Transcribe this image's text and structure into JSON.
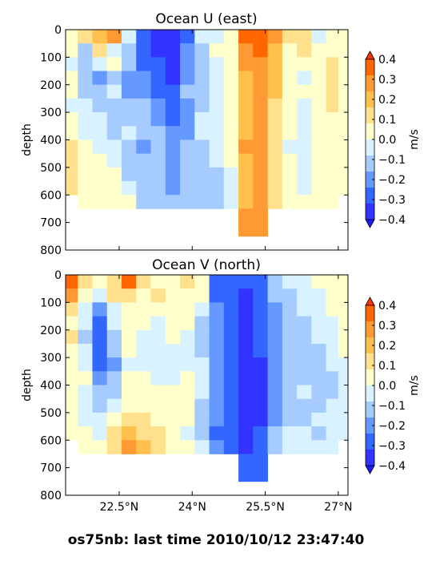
{
  "figure": {
    "caption": "os75nb: last time 2010/10/12 23:47:40"
  },
  "colors": {
    "levels": [
      "#3333ff",
      "#3366ff",
      "#6699ff",
      "#a6ccff",
      "#d9f2ff",
      "#ffffcc",
      "#ffe08c",
      "#ffc04d",
      "#ff9933",
      "#ff6600"
    ],
    "nodata": "#ffffff"
  },
  "chart_data": [
    {
      "type": "heatmap",
      "title": "Ocean U (east)",
      "ylabel": "depth",
      "ylim": [
        800,
        0
      ],
      "yticks": [
        "0",
        "100",
        "200",
        "300",
        "400",
        "500",
        "600",
        "700",
        "800"
      ],
      "xlim": [
        21.4,
        27.2
      ],
      "xticks": [],
      "colorbar": {
        "label": "m/s",
        "ticks": [
          "0.4",
          "0.3",
          "0.2",
          "0.1",
          "0.0",
          "−0.1",
          "−0.2",
          "−0.3",
          "−0.4"
        ],
        "range": [
          -0.4,
          0.4
        ]
      },
      "depth_bins": [
        25,
        75,
        125,
        175,
        225,
        275,
        325,
        375,
        425,
        475,
        525,
        575,
        625,
        675,
        725
      ],
      "latitude_bins": [
        21.5,
        21.8,
        22.1,
        22.4,
        22.7,
        23.0,
        23.3,
        23.6,
        23.9,
        24.2,
        24.5,
        24.8,
        25.1,
        25.4,
        25.7,
        26.0,
        26.3,
        26.6,
        26.9,
        27.1
      ],
      "values": [
        [
          0.05,
          0.12,
          0.18,
          0.28,
          -0.02,
          -0.32,
          -0.38,
          -0.36,
          -0.3,
          -0.08,
          -0.02,
          0.02,
          0.32,
          0.38,
          0.24,
          0.1,
          0.15,
          -0.04,
          0.02,
          0.05
        ],
        [
          0.02,
          -0.1,
          0.12,
          -0.05,
          -0.12,
          -0.3,
          -0.35,
          -0.38,
          -0.22,
          -0.1,
          0.0,
          0.02,
          0.28,
          0.35,
          0.22,
          0.05,
          0.12,
          0.02,
          0.05,
          0.02
        ],
        [
          -0.04,
          -0.12,
          -0.05,
          0.02,
          -0.15,
          -0.25,
          -0.3,
          -0.36,
          -0.2,
          -0.12,
          -0.05,
          0.0,
          0.24,
          0.3,
          0.2,
          0.04,
          0.03,
          0.05,
          0.08,
          0.05
        ],
        [
          0.05,
          -0.15,
          -0.2,
          -0.12,
          -0.18,
          -0.22,
          -0.28,
          -0.33,
          -0.18,
          -0.15,
          -0.08,
          0.02,
          0.22,
          0.28,
          0.18,
          0.05,
          -0.05,
          0.04,
          0.1,
          0.06
        ],
        [
          0.02,
          -0.1,
          -0.12,
          -0.05,
          -0.2,
          -0.18,
          -0.26,
          -0.3,
          -0.15,
          -0.12,
          -0.06,
          0.0,
          0.2,
          0.26,
          0.16,
          0.06,
          0.03,
          0.05,
          0.12,
          0.04
        ],
        [
          -0.02,
          -0.06,
          -0.14,
          -0.1,
          -0.12,
          -0.15,
          -0.22,
          -0.28,
          -0.2,
          -0.1,
          -0.08,
          0.02,
          0.2,
          0.24,
          0.15,
          0.02,
          -0.04,
          0.04,
          0.08,
          0.05
        ],
        [
          0.03,
          -0.04,
          -0.05,
          -0.15,
          -0.1,
          -0.12,
          -0.18,
          -0.25,
          -0.22,
          -0.08,
          -0.04,
          0.0,
          0.22,
          0.24,
          0.14,
          0.0,
          -0.02,
          0.05,
          0.06,
          0.04
        ],
        [
          0.05,
          -0.02,
          -0.08,
          -0.12,
          -0.05,
          -0.15,
          -0.15,
          -0.22,
          -0.18,
          -0.05,
          -0.02,
          0.02,
          0.22,
          0.26,
          0.15,
          0.02,
          -0.05,
          0.06,
          0.05,
          0.05
        ],
        [
          0.08,
          0.02,
          -0.05,
          -0.08,
          -0.12,
          -0.18,
          -0.12,
          -0.2,
          -0.15,
          -0.1,
          -0.05,
          0.0,
          0.24,
          0.28,
          0.15,
          -0.02,
          -0.08,
          0.04,
          0.04,
          0.05
        ],
        [
          0.12,
          0.04,
          0.02,
          -0.05,
          -0.15,
          -0.12,
          -0.12,
          -0.22,
          -0.12,
          -0.12,
          -0.08,
          0.02,
          0.22,
          0.26,
          0.14,
          0.02,
          -0.05,
          0.03,
          0.04,
          0.04
        ],
        [
          0.15,
          0.05,
          0.05,
          0.02,
          -0.1,
          -0.12,
          -0.15,
          -0.2,
          -0.1,
          -0.15,
          -0.1,
          -0.05,
          0.22,
          0.26,
          0.12,
          0.0,
          -0.04,
          0.05,
          0.05,
          0.04
        ],
        [
          0.08,
          0.05,
          0.05,
          0.04,
          -0.05,
          -0.15,
          -0.15,
          -0.18,
          -0.12,
          -0.12,
          -0.15,
          -0.05,
          0.2,
          0.25,
          0.1,
          0.0,
          -0.02,
          0.04,
          0.06,
          0.05
        ],
        [
          null,
          0.05,
          0.05,
          0.05,
          0.02,
          -0.12,
          -0.12,
          -0.15,
          -0.15,
          -0.12,
          -0.1,
          -0.05,
          0.22,
          0.24,
          0.1,
          0.04,
          0.02,
          0.05,
          0.05,
          null
        ],
        [
          null,
          null,
          null,
          null,
          null,
          null,
          null,
          null,
          null,
          null,
          null,
          null,
          0.25,
          0.28,
          null,
          null,
          null,
          null,
          null,
          null
        ],
        [
          null,
          null,
          null,
          null,
          null,
          null,
          null,
          null,
          null,
          null,
          null,
          null,
          0.25,
          0.28,
          null,
          null,
          null,
          null,
          null,
          null
        ]
      ]
    },
    {
      "type": "heatmap",
      "title": "Ocean V (north)",
      "ylabel": "depth",
      "ylim": [
        800,
        0
      ],
      "yticks": [
        "0",
        "100",
        "200",
        "300",
        "400",
        "500",
        "600",
        "700",
        "800"
      ],
      "xlim": [
        21.4,
        27.2
      ],
      "xticks": [
        {
          "value": 22.5,
          "label": "22.5°N"
        },
        {
          "value": 24.0,
          "label": "24°N"
        },
        {
          "value": 25.5,
          "label": "25.5°N"
        },
        {
          "value": 27.0,
          "label": "27°N"
        }
      ],
      "colorbar": {
        "label": "m/s",
        "ticks": [
          "0.4",
          "0.3",
          "0.2",
          "0.1",
          "0.0",
          "−0.1",
          "−0.2",
          "−0.3",
          "−0.4"
        ],
        "range": [
          -0.4,
          0.4
        ]
      },
      "depth_bins": [
        25,
        75,
        125,
        175,
        225,
        275,
        325,
        375,
        425,
        475,
        525,
        575,
        625,
        675,
        725
      ],
      "latitude_bins": [
        21.5,
        21.8,
        22.1,
        22.4,
        22.7,
        23.0,
        23.3,
        23.6,
        23.9,
        24.2,
        24.5,
        24.8,
        25.1,
        25.4,
        25.7,
        26.0,
        26.3,
        26.6,
        26.9,
        27.1
      ],
      "values": [
        [
          0.35,
          0.15,
          0.05,
          0.12,
          0.38,
          0.15,
          0.05,
          0.02,
          0.12,
          0.05,
          -0.25,
          -0.3,
          -0.32,
          -0.25,
          -0.1,
          -0.05,
          -0.08,
          0.02,
          0.05,
          0.04
        ],
        [
          0.25,
          0.05,
          -0.05,
          0.08,
          0.15,
          0.05,
          0.08,
          0.02,
          0.05,
          0.02,
          -0.25,
          -0.32,
          -0.35,
          -0.28,
          -0.15,
          -0.1,
          -0.05,
          -0.02,
          0.04,
          0.05
        ],
        [
          0.1,
          -0.02,
          -0.22,
          -0.02,
          0.05,
          0.02,
          0.05,
          0.02,
          0.02,
          -0.05,
          -0.22,
          -0.28,
          -0.34,
          -0.3,
          -0.18,
          -0.12,
          -0.05,
          -0.05,
          0.02,
          0.04
        ],
        [
          0.05,
          -0.08,
          -0.28,
          -0.08,
          0.04,
          0.0,
          -0.04,
          0.02,
          0.02,
          -0.1,
          -0.2,
          -0.25,
          -0.35,
          -0.28,
          -0.2,
          -0.15,
          -0.1,
          -0.05,
          -0.02,
          0.02
        ],
        [
          0.08,
          -0.1,
          -0.3,
          -0.12,
          0.02,
          -0.02,
          -0.05,
          0.0,
          -0.02,
          -0.12,
          -0.18,
          -0.25,
          -0.38,
          -0.3,
          -0.22,
          -0.12,
          -0.1,
          -0.08,
          -0.04,
          0.0
        ],
        [
          0.05,
          -0.05,
          -0.28,
          -0.15,
          0.02,
          -0.05,
          -0.08,
          -0.05,
          -0.05,
          -0.1,
          -0.2,
          -0.28,
          -0.4,
          -0.32,
          -0.2,
          -0.12,
          -0.12,
          -0.1,
          -0.05,
          0.0
        ],
        [
          0.02,
          -0.02,
          -0.25,
          -0.18,
          -0.02,
          -0.02,
          -0.05,
          -0.08,
          -0.02,
          -0.08,
          -0.22,
          -0.3,
          -0.42,
          -0.35,
          -0.22,
          -0.15,
          -0.12,
          -0.12,
          -0.08,
          -0.02
        ],
        [
          0.04,
          0.02,
          -0.2,
          -0.15,
          0.02,
          0.02,
          -0.02,
          -0.05,
          0.0,
          -0.05,
          -0.2,
          -0.32,
          -0.42,
          -0.35,
          -0.2,
          -0.12,
          -0.1,
          -0.1,
          -0.12,
          -0.05
        ],
        [
          0.05,
          -0.02,
          -0.15,
          -0.1,
          0.04,
          0.04,
          0.02,
          0.0,
          0.02,
          -0.08,
          -0.18,
          -0.3,
          -0.44,
          -0.38,
          -0.22,
          -0.12,
          -0.08,
          -0.1,
          -0.12,
          -0.05
        ],
        [
          0.02,
          -0.05,
          -0.1,
          -0.05,
          0.05,
          0.05,
          0.04,
          0.02,
          0.02,
          -0.1,
          -0.2,
          -0.3,
          -0.44,
          -0.36,
          -0.2,
          -0.1,
          -0.1,
          -0.1,
          -0.08,
          -0.05
        ],
        [
          0.0,
          -0.02,
          -0.08,
          0.02,
          0.12,
          0.1,
          0.05,
          0.02,
          0.0,
          -0.12,
          -0.22,
          -0.3,
          -0.44,
          -0.35,
          -0.18,
          -0.1,
          -0.1,
          -0.08,
          -0.05,
          -0.04
        ],
        [
          0.02,
          0.0,
          -0.05,
          0.08,
          0.22,
          0.15,
          0.08,
          0.02,
          -0.02,
          -0.1,
          -0.25,
          -0.32,
          -0.4,
          -0.32,
          -0.15,
          -0.05,
          -0.08,
          -0.1,
          -0.05,
          -0.02
        ],
        [
          null,
          0.02,
          0.02,
          0.12,
          0.25,
          0.18,
          0.1,
          0.04,
          0.02,
          -0.05,
          -0.22,
          -0.3,
          -0.36,
          -0.3,
          -0.12,
          -0.05,
          -0.05,
          -0.05,
          -0.02,
          null
        ],
        [
          null,
          null,
          null,
          null,
          null,
          null,
          null,
          null,
          null,
          null,
          null,
          null,
          -0.32,
          -0.3,
          null,
          null,
          null,
          null,
          null,
          null
        ],
        [
          null,
          null,
          null,
          null,
          null,
          null,
          null,
          null,
          null,
          null,
          null,
          null,
          -0.3,
          -0.26,
          null,
          null,
          null,
          null,
          null,
          null
        ]
      ]
    }
  ]
}
